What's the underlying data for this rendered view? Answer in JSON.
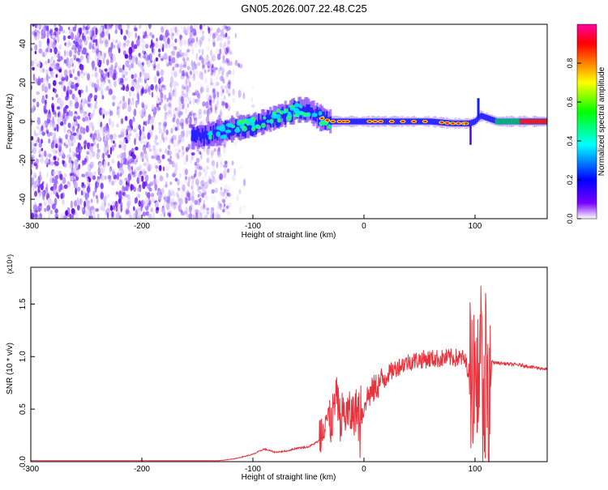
{
  "title": "GN05.2026.007.22.48.C25",
  "chart_data": [
    {
      "type": "heatmap",
      "title": "GN05.2026.007.22.48.C25",
      "xlabel": "Height of straight line (km)",
      "ylabel": "Frequency (Hz)",
      "xlim": [
        -300,
        165
      ],
      "ylim": [
        -50,
        50
      ],
      "x_ticks": [
        "-300",
        "-200",
        "-100",
        "0",
        "100"
      ],
      "y_ticks": [
        "-40",
        "-20",
        "0",
        "20",
        "40"
      ],
      "colorbar": {
        "label": "Normalized spectral amplitude",
        "range": [
          0,
          1
        ],
        "ticks": [
          "0.0",
          "0.2",
          "0.4",
          "0.6",
          "0.8"
        ],
        "colors": [
          "#ffffff",
          "#7a00ff",
          "#0000ff",
          "#00ffff",
          "#00ff00",
          "#ffff00",
          "#ff8000",
          "#ff0000",
          "#ff00a0"
        ]
      },
      "noise_region_x": [
        -300,
        -120
      ],
      "signal_centerline": {
        "x": [
          -155,
          -140,
          -120,
          -100,
          -80,
          -60,
          -50,
          -40,
          -30,
          -20,
          -10,
          0,
          20,
          40,
          60,
          80,
          95,
          100,
          105,
          120,
          140,
          165
        ],
        "y": [
          -8,
          -7,
          -4,
          -2,
          2,
          6,
          6,
          2,
          0,
          0,
          0,
          0,
          0,
          0,
          0,
          -1,
          -1,
          0,
          3,
          0,
          0,
          0
        ]
      }
    },
    {
      "type": "line",
      "xlabel": "Height of straight line (km)",
      "ylabel": "SNR (10 * v/v)",
      "scale_label": "(x10⁴)",
      "xlim": [
        -300,
        165
      ],
      "ylim": [
        0,
        1.85
      ],
      "x_ticks": [
        "-300",
        "-200",
        "-100",
        "0",
        "100"
      ],
      "y_ticks": [
        "0.0",
        "0.5",
        "1.0",
        "1.5"
      ],
      "series": [
        {
          "color": "#e8323c",
          "x": [
            -300,
            -200,
            -130,
            -115,
            -100,
            -90,
            -80,
            -70,
            -60,
            -50,
            -40,
            -35,
            -30,
            -25,
            -20,
            -10,
            0,
            10,
            20,
            30,
            40,
            50,
            60,
            70,
            80,
            90,
            95,
            100,
            105,
            108,
            110,
            112,
            115,
            120,
            140,
            165
          ],
          "y": [
            0.01,
            0.01,
            0.01,
            0.03,
            0.07,
            0.12,
            0.09,
            0.1,
            0.13,
            0.14,
            0.2,
            0.45,
            0.35,
            0.6,
            0.45,
            0.45,
            0.58,
            0.7,
            0.82,
            0.9,
            0.95,
            0.97,
            0.98,
            0.98,
            0.99,
            0.98,
            0.85,
            0.92,
            1.15,
            0.2,
            1.3,
            0.15,
            0.95,
            0.94,
            0.92,
            0.88
          ]
        }
      ]
    }
  ]
}
